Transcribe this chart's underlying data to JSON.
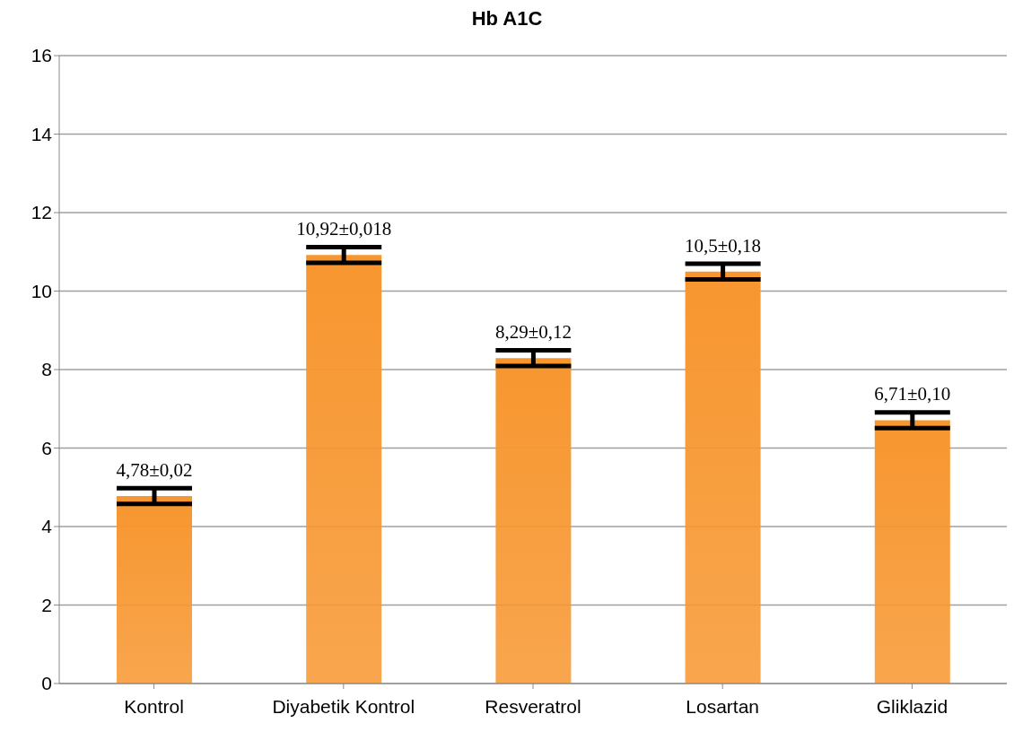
{
  "chart_data": {
    "type": "bar",
    "title": "Hb A1C",
    "categories": [
      "Kontrol",
      "Diyabetik Kontrol",
      "Resveratrol",
      "Losartan",
      "Gliklazid"
    ],
    "values": [
      4.78,
      10.92,
      8.29,
      10.5,
      6.71
    ],
    "errors": [
      0.2,
      0.2,
      0.2,
      0.2,
      0.2
    ],
    "value_labels": [
      "4,78±0,02",
      "10,92±0,018",
      "8,29±0,12",
      "10,5±0,18",
      "6,71±0,10"
    ],
    "color": "#f7962f",
    "ylim": [
      0,
      16
    ],
    "yticks": [
      0,
      2,
      4,
      6,
      8,
      10,
      12,
      14,
      16
    ],
    "grid": "y"
  }
}
